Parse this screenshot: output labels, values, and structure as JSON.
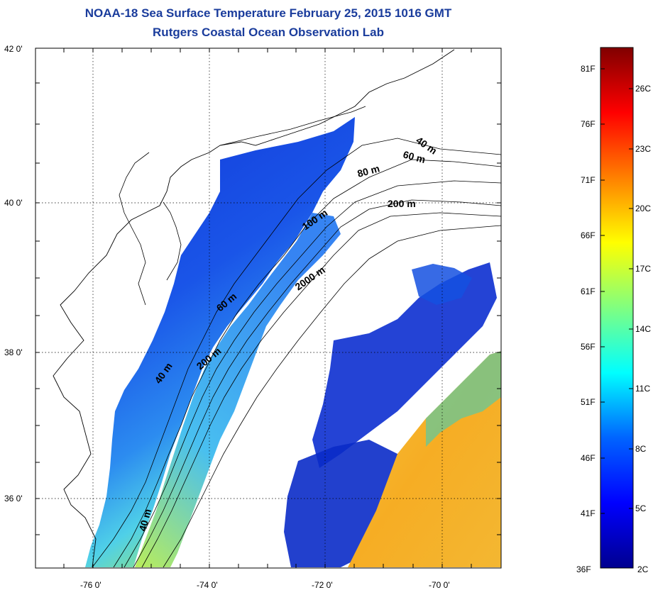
{
  "title": {
    "line1": "NOAA-18 Sea Surface Temperature February 25, 2015 1016 GMT",
    "line2": "Rutgers Coastal Ocean Observation Lab"
  },
  "axes": {
    "lat_labels": [
      "42 0'",
      "40 0'",
      "38 0'",
      "36 0'"
    ],
    "lon_labels": [
      "-76 0'",
      "-74 0'",
      "-72 0'",
      "-70 0'"
    ]
  },
  "isobath_labels": [
    "40 m",
    "60 m",
    "80 m",
    "200 m",
    "100 m",
    "2000 m",
    "60 m",
    "200 m",
    "40 m",
    "40 m"
  ],
  "colorbar": {
    "fahrenheit": [
      "81F",
      "76F",
      "71F",
      "66F",
      "61F",
      "56F",
      "51F",
      "46F",
      "41F",
      "36F"
    ],
    "celsius": [
      "26C",
      "23C",
      "20C",
      "17C",
      "14C",
      "11C",
      "8C",
      "5C",
      "2C"
    ],
    "colors": [
      "#00008f",
      "#0000ff",
      "#0080ff",
      "#00ffff",
      "#80ff80",
      "#ffff00",
      "#ff8000",
      "#ff0000",
      "#800000"
    ]
  },
  "colors": {
    "title": "#1a3c9c",
    "cold_water": "#0a2fd6",
    "shelf_water": "#1a6cf0",
    "warm_shelf": "#3cc6f2",
    "gulf_stream": "#f5b52a"
  }
}
